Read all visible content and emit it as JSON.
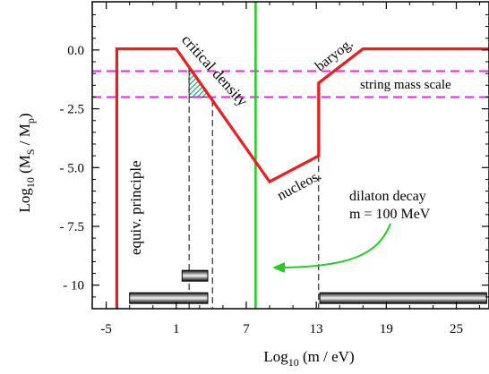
{
  "chart_data": {
    "type": "line",
    "xlabel": {
      "base": "Log",
      "sub": "10",
      "rest": " (m / eV)"
    },
    "ylabel": {
      "base": "Log",
      "sub1": "10",
      "mid": " (M",
      "sub2": "S",
      "mid2": " / M",
      "sub3": "p",
      "end": ")"
    },
    "xlim": [
      -6.2,
      27.8
    ],
    "ylim": [
      -11.0,
      2.05
    ],
    "x_ticks": [
      -5,
      1,
      7,
      13,
      19,
      25
    ],
    "x_tick_labels": [
      "-5",
      "1",
      "7",
      "13",
      "19",
      "25"
    ],
    "y_ticks": [
      0.0,
      -2.5,
      -5.0,
      -7.5,
      -10
    ],
    "y_tick_labels": [
      "0.0",
      "- 2.5",
      "- 5.0",
      "- 7.5",
      "- 10"
    ],
    "colors": {
      "bound": "#ee1c1c",
      "vertical": "#22cc22",
      "string_scale": "#ee22ee",
      "hatch": "#11aa77"
    },
    "series": [
      {
        "name": "",
        "x": [
          -4.1,
          -4.1,
          -2.0,
          1.0,
          9.0,
          13.2,
          13.2,
          17.0,
          27.8
        ],
        "y": [
          -11.0,
          0.05,
          0.05,
          0.05,
          -5.6,
          -4.5,
          -1.4,
          0.05,
          0.05
        ]
      }
    ],
    "vertical_line_x": 7.8,
    "string_scale_band": [
      -0.9,
      -2.0
    ],
    "hatched_region_x": [
      2.1,
      4.1
    ],
    "dashed_guides_x": [
      2.1,
      4.1,
      13.2
    ],
    "bars": [
      {
        "x0": -3.0,
        "x1": 3.7,
        "y": -10.55
      },
      {
        "x0": 1.5,
        "x1": 3.7,
        "y": -9.6
      },
      {
        "x0": 13.3,
        "x1": 27.6,
        "y": -10.55
      }
    ],
    "annotations": [
      {
        "key": "equiv",
        "text": "equiv.  principle"
      },
      {
        "key": "critical",
        "text": "critical density"
      },
      {
        "key": "nucleos",
        "text": "nucleos."
      },
      {
        "key": "baryog",
        "text": "baryog."
      },
      {
        "key": "string",
        "text": "string mass scale"
      },
      {
        "key": "dilaton1",
        "text": "dilaton decay"
      },
      {
        "key": "dilaton2",
        "text": "m = 100 MeV"
      }
    ]
  }
}
